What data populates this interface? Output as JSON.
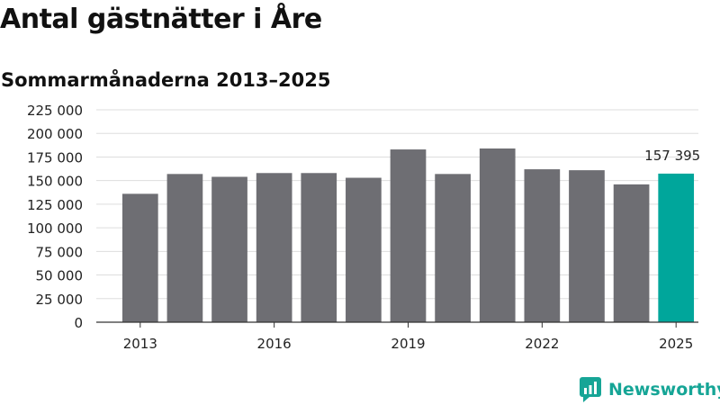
{
  "title": "Antal gästnätter i Åre",
  "subtitle": "Sommarmånaderna 2013–2025",
  "brand": {
    "name": "Newsworthy",
    "color": "#16a596"
  },
  "colors": {
    "bar": "#6e6e73",
    "highlight": "#00a69b",
    "grid": "#dddddd"
  },
  "chart_data": {
    "type": "bar",
    "title": "Antal gästnätter i Åre",
    "subtitle": "Sommarmånaderna 2013–2025",
    "categories": [
      "2013",
      "2014",
      "2015",
      "2016",
      "2017",
      "2018",
      "2019",
      "2020",
      "2021",
      "2022",
      "2023",
      "2024",
      "2025"
    ],
    "x_tick_labels": [
      "2013",
      "2016",
      "2019",
      "2022",
      "2025"
    ],
    "values": [
      136000,
      157000,
      154000,
      158000,
      158000,
      153000,
      183000,
      157000,
      184000,
      162000,
      161000,
      146000,
      157395
    ],
    "highlight": {
      "category": "2025",
      "label": "157 395"
    },
    "y_ticks": [
      {
        "value": 0,
        "label": "0"
      },
      {
        "value": 25000,
        "label": "25 000"
      },
      {
        "value": 50000,
        "label": "50 000"
      },
      {
        "value": 75000,
        "label": "75 000"
      },
      {
        "value": 100000,
        "label": "100 000"
      },
      {
        "value": 125000,
        "label": "125 000"
      },
      {
        "value": 150000,
        "label": "150 000"
      },
      {
        "value": 175000,
        "label": "175 000"
      },
      {
        "value": 200000,
        "label": "200 000"
      },
      {
        "value": 225000,
        "label": "225 000"
      }
    ],
    "ylim": [
      0,
      225000
    ],
    "xlabel": "",
    "ylabel": "",
    "grid": true,
    "legend": "none"
  }
}
